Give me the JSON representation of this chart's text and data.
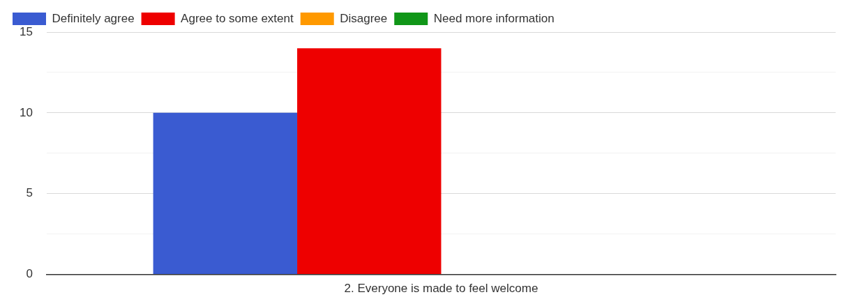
{
  "chart_data": {
    "type": "bar",
    "categories": [
      "2. Everyone is made to feel welcome"
    ],
    "series": [
      {
        "name": "Definitely agree",
        "color": "#3a5bd1",
        "values": [
          10
        ]
      },
      {
        "name": "Agree to some extent",
        "color": "#ee0000",
        "values": [
          14
        ]
      },
      {
        "name": "Disagree",
        "color": "#ff9900",
        "values": [
          0
        ]
      },
      {
        "name": "Need more information",
        "color": "#109618",
        "values": [
          0
        ]
      }
    ],
    "ylim": [
      0,
      15
    ],
    "yticks": [
      0,
      {
        "value": 2.5,
        "label": null
      },
      5,
      {
        "value": 7.5,
        "label": null
      },
      10,
      {
        "value": 12.5,
        "label": null
      },
      15
    ],
    "grid": "y",
    "legend": "top"
  }
}
